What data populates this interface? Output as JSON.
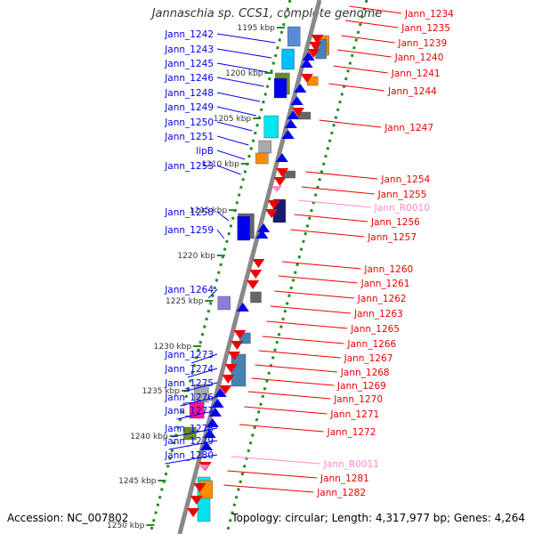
{
  "title": "Jannaschia sp. CCS1, complete genome",
  "footer": {
    "accession": "Accession: NC_007802",
    "topology": "Topology: circular; Length: 4,317,977 bp; Genes: 4,264"
  },
  "colors": {
    "forward_gene": "#0000ee",
    "reverse_gene": "#ee0000",
    "rna_gene": "#ff88cc",
    "scale_dots": "#228b22",
    "chromosome": "#888888"
  },
  "scale_labels": [
    "1195 kbp",
    "1200 kbp",
    "1205 kbp",
    "1210 kbp",
    "1215 kbp",
    "1220 kbp",
    "1225 kbp",
    "1230 kbp",
    "1235 kbp",
    "1240 kbp",
    "1245 kbp",
    "1250 kbp"
  ],
  "genes_forward": [
    "Jann_1242",
    "Jann_1243",
    "Jann_1245",
    "Jann_1246",
    "Jann_1248",
    "Jann_1249",
    "Jann_1250",
    "Jann_1251",
    "lipB",
    "Jann_1253",
    "Jann_1258",
    "Jann_1259",
    "Jann_1264",
    "Jann_1273",
    "Jann_1274",
    "Jann_1275",
    "Jann_1276",
    "Jann_1277",
    "Jann_1278",
    "Jann_1279",
    "Jann_1280"
  ],
  "genes_reverse": [
    "Jann_1234",
    "Jann_1235",
    "Jann_1239",
    "Jann_1240",
    "Jann_1241",
    "Jann_1244",
    "Jann_1247",
    "Jann_1254",
    "Jann_1255",
    "Jann_R0010",
    "Jann_1256",
    "Jann_1257",
    "Jann_1260",
    "Jann_1261",
    "Jann_1262",
    "Jann_1263",
    "Jann_1265",
    "Jann_1266",
    "Jann_1267",
    "Jann_1268",
    "Jann_1269",
    "Jann_1270",
    "Jann_1271",
    "Jann_1272",
    "Jann_R0011",
    "Jann_1281",
    "Jann_1282"
  ]
}
